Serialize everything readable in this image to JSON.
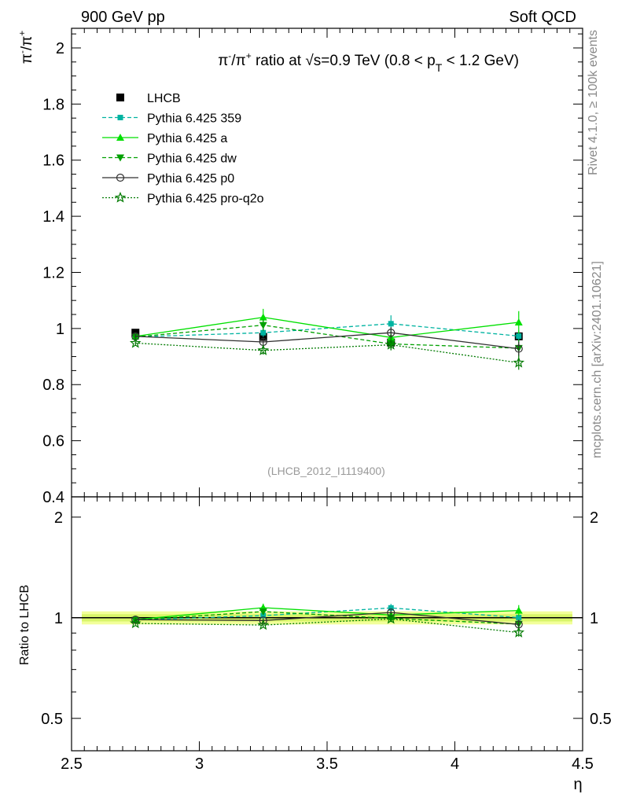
{
  "header": {
    "left_label": "900 GeV pp",
    "right_label": "Soft QCD"
  },
  "side_labels": {
    "rivet": "Rivet 4.1.0, ≥ 100k events",
    "mcplots": "mcplots.cern.ch [arXiv:2401.10621]"
  },
  "chart_data": [
    {
      "type": "line",
      "panel": "main",
      "title": "π⁻/π⁺ ratio at √s=0.9 TeV (0.8 < p_T < 1.2 GeV)",
      "title_parts": {
        "pre": "π",
        "sup1": "-",
        "mid": "/π",
        "sup2": "+",
        "post1": " ratio at ",
        "sqrt": "√",
        "s_part": "s=0.9 TeV (0.8 < p",
        "sub": "T",
        "post2": " < 1.2 GeV)"
      },
      "ylabel": "π⁻/π⁺",
      "ylabel_parts": {
        "a": "π",
        "a_sup": "-",
        "b": "/π",
        "b_sup": "+"
      },
      "xlim": [
        2.5,
        4.5
      ],
      "ylim": [
        0.4,
        2.07
      ],
      "yticks": [
        0.4,
        0.6,
        0.8,
        1,
        1.2,
        1.4,
        1.6,
        1.8,
        2
      ],
      "ytick_labels": [
        "0.4",
        "0.6",
        "0.8",
        "1",
        "1.2",
        "1.4",
        "1.6",
        "1.8",
        "2"
      ],
      "watermark": "(LHCB_2012_I1119400)",
      "x": [
        2.75,
        3.25,
        3.75,
        4.25
      ],
      "series": [
        {
          "name": "LHCB",
          "color": "#000000",
          "marker": "square",
          "line": "none",
          "values": [
            0.985,
            0.97,
            0.95,
            0.972
          ],
          "errors": [
            0.01,
            0.01,
            0.01,
            0.01
          ]
        },
        {
          "name": "Pythia 6.425 359",
          "color": "#00b3a1",
          "marker": "square-small",
          "line": "dashed",
          "values": [
            0.97,
            0.985,
            1.017,
            0.973
          ],
          "errors": [
            0.01,
            0.015,
            0.03,
            0.02
          ]
        },
        {
          "name": "Pythia 6.425 a",
          "color": "#00e000",
          "marker": "triangle-up",
          "line": "solid",
          "values": [
            0.972,
            1.04,
            0.968,
            1.022
          ],
          "errors": [
            0.01,
            0.03,
            0.025,
            0.04
          ]
        },
        {
          "name": "Pythia 6.425 dw",
          "color": "#00a000",
          "marker": "triangle-down",
          "line": "dashed",
          "values": [
            0.97,
            1.012,
            0.945,
            0.93
          ],
          "errors": [
            0.01,
            0.02,
            0.02,
            0.03
          ]
        },
        {
          "name": "Pythia 6.425 p0",
          "color": "#303030",
          "marker": "circle-open",
          "line": "solid",
          "values": [
            0.972,
            0.952,
            0.985,
            0.928
          ],
          "errors": [
            0.01,
            0.015,
            0.02,
            0.025
          ]
        },
        {
          "name": "Pythia 6.425 pro-q2o",
          "color": "#007a00",
          "marker": "star-open",
          "line": "dotted",
          "values": [
            0.948,
            0.922,
            0.942,
            0.878
          ],
          "errors": [
            0.01,
            0.015,
            0.02,
            0.025
          ]
        }
      ]
    },
    {
      "type": "line",
      "panel": "ratio",
      "ylabel": "Ratio to LHCB",
      "xlabel": "η",
      "yscale": "log",
      "xlim": [
        2.5,
        4.5
      ],
      "ylim": [
        0.4,
        2.3
      ],
      "xticks": [
        2.5,
        3,
        3.5,
        4,
        4.5
      ],
      "xtick_labels": [
        "2.5",
        "3",
        "3.5",
        "4",
        "4.5"
      ],
      "yticks": [
        0.5,
        1,
        2
      ],
      "ytick_labels": [
        "0.5",
        "1",
        "2"
      ],
      "band": {
        "inner": [
          0.975,
          1.025
        ],
        "outer": [
          0.955,
          1.045
        ]
      },
      "x": [
        2.75,
        3.25,
        3.75,
        4.25
      ],
      "series": [
        {
          "name": "Pythia 6.425 359",
          "values": [
            0.985,
            1.015,
            1.07,
            1.001
          ],
          "errors": [
            0.01,
            0.015,
            0.03,
            0.02
          ]
        },
        {
          "name": "Pythia 6.425 a",
          "values": [
            0.987,
            1.072,
            1.019,
            1.051
          ],
          "errors": [
            0.01,
            0.03,
            0.025,
            0.04
          ]
        },
        {
          "name": "Pythia 6.425 dw",
          "values": [
            0.985,
            1.043,
            0.995,
            0.957
          ],
          "errors": [
            0.01,
            0.02,
            0.02,
            0.03
          ]
        },
        {
          "name": "Pythia 6.425 p0",
          "values": [
            0.987,
            0.981,
            1.037,
            0.955
          ],
          "errors": [
            0.01,
            0.015,
            0.02,
            0.025
          ]
        },
        {
          "name": "Pythia 6.425 pro-q2o",
          "values": [
            0.962,
            0.951,
            0.992,
            0.903
          ],
          "errors": [
            0.01,
            0.015,
            0.02,
            0.025
          ]
        }
      ]
    }
  ]
}
